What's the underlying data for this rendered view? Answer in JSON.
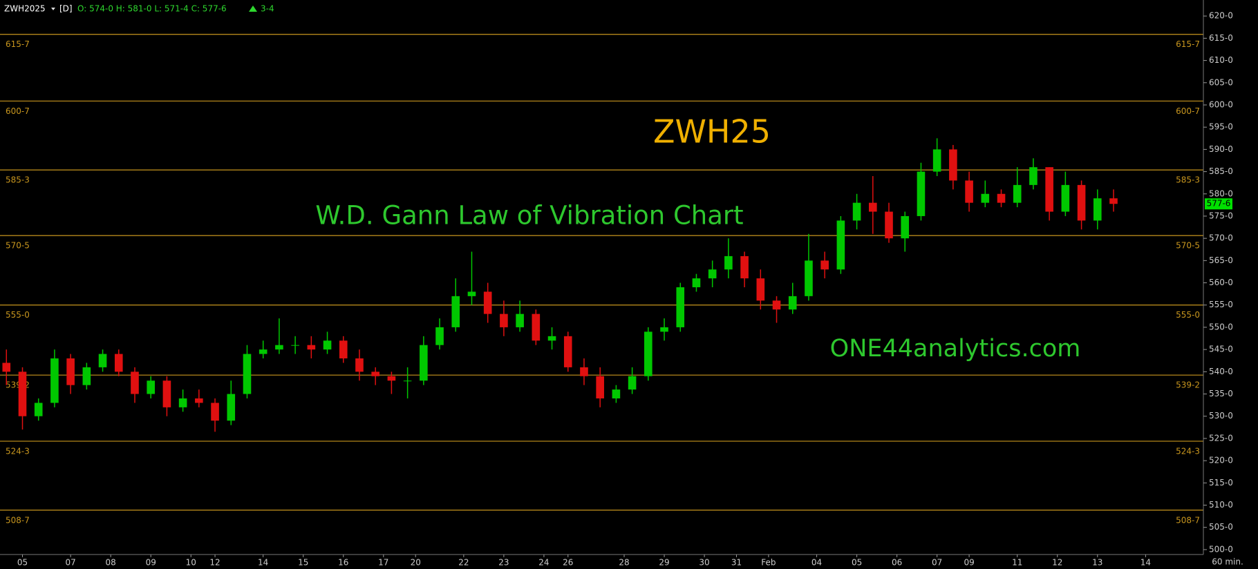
{
  "header": {
    "symbol": "ZWH2025",
    "interval": "[D]",
    "ohlc": "O: 574-0 H: 581-0 L: 571-4 C: 577-6",
    "change": "3-4"
  },
  "chart_data": {
    "type": "candlestick",
    "title": "ZWH25",
    "subtitle": "W.D. Gann Law of Vibration Chart",
    "annotation": "ONE44analytics.com",
    "x_unit": "60 min.",
    "up_color": "#00c800",
    "down_color": "#e01010",
    "level_color": "#c8961e",
    "open": [
      542,
      540,
      530,
      533,
      543,
      537,
      541,
      544,
      540,
      535,
      538,
      532,
      534,
      533,
      529,
      535,
      544,
      545,
      546,
      546,
      545,
      547,
      543,
      540,
      539,
      538,
      538,
      546,
      550,
      557,
      558,
      553,
      550,
      553,
      547,
      548,
      541,
      539,
      534,
      536,
      539,
      549,
      550,
      559,
      561,
      563,
      566,
      561,
      556,
      554,
      557,
      565,
      563,
      574,
      578,
      576,
      570,
      575,
      585,
      590,
      583,
      578,
      580,
      578,
      582,
      586,
      576,
      582,
      574,
      579
    ],
    "high": [
      545,
      541,
      534,
      545,
      544,
      542,
      545,
      545,
      541,
      539,
      539,
      536,
      536,
      534,
      538,
      546,
      547,
      552,
      548,
      548,
      549,
      548,
      545,
      541,
      540,
      541,
      548,
      552,
      561,
      567,
      560,
      556,
      556,
      554,
      550,
      549,
      543,
      541,
      537,
      541,
      550,
      552,
      560,
      562,
      565,
      570,
      567,
      563,
      557,
      560,
      571,
      567,
      575,
      580,
      584,
      578,
      576,
      587,
      592.5,
      591,
      585,
      583,
      581,
      586,
      588,
      586,
      585,
      583,
      581,
      581
    ],
    "low": [
      537,
      527,
      529,
      532,
      535,
      536,
      540,
      539,
      533,
      534,
      530,
      531,
      532,
      526.5,
      528,
      534,
      543,
      544,
      544,
      543,
      544,
      542,
      538,
      537,
      535,
      534,
      537,
      545,
      549,
      555,
      551,
      548,
      549,
      546,
      545,
      540,
      537,
      532,
      533,
      535,
      538,
      547,
      549,
      558,
      559,
      561,
      559,
      554,
      551,
      553,
      556,
      561,
      562,
      572,
      571,
      569,
      567,
      574,
      584,
      581,
      576,
      577,
      577,
      577,
      581,
      574,
      575,
      572,
      572,
      576
    ],
    "close": [
      540,
      530,
      533,
      543,
      537,
      541,
      544,
      540,
      535,
      538,
      532,
      534,
      533,
      529,
      535,
      544,
      545,
      546,
      546,
      545,
      547,
      543,
      540,
      539,
      538,
      538,
      546,
      550,
      557,
      558,
      553,
      550,
      553,
      547,
      548,
      541,
      539,
      534,
      536,
      539,
      549,
      550,
      559,
      561,
      563,
      566,
      561,
      556,
      554,
      557,
      565,
      563,
      574,
      578,
      576,
      570,
      575,
      585,
      590,
      583,
      578,
      580,
      578,
      582,
      586,
      576,
      582,
      574,
      579,
      577.75
    ],
    "xlim": [
      -0.4,
      74.6
    ],
    "xticks": [
      {
        "value": 1,
        "label": "05"
      },
      {
        "value": 4,
        "label": "07"
      },
      {
        "value": 6.5,
        "label": "08"
      },
      {
        "value": 9,
        "label": "09"
      },
      {
        "value": 11.5,
        "label": "10"
      },
      {
        "value": 13,
        "label": "12"
      },
      {
        "value": 16,
        "label": "14"
      },
      {
        "value": 18.5,
        "label": "15"
      },
      {
        "value": 21,
        "label": "16"
      },
      {
        "value": 23.5,
        "label": "17"
      },
      {
        "value": 25.5,
        "label": "20"
      },
      {
        "value": 28.5,
        "label": "22"
      },
      {
        "value": 31,
        "label": "23"
      },
      {
        "value": 33.5,
        "label": "24"
      },
      {
        "value": 35,
        "label": "26"
      },
      {
        "value": 38.5,
        "label": "28"
      },
      {
        "value": 41,
        "label": "29"
      },
      {
        "value": 43.5,
        "label": "30"
      },
      {
        "value": 45.5,
        "label": "31"
      },
      {
        "value": 47.5,
        "label": "Feb"
      },
      {
        "value": 50.5,
        "label": "04"
      },
      {
        "value": 53,
        "label": "05"
      },
      {
        "value": 55.5,
        "label": "06"
      },
      {
        "value": 58,
        "label": "07"
      },
      {
        "value": 60,
        "label": "09"
      },
      {
        "value": 63,
        "label": "11"
      },
      {
        "value": 65.5,
        "label": "12"
      },
      {
        "value": 68,
        "label": "13"
      },
      {
        "value": 71,
        "label": "14"
      }
    ],
    "ylim": [
      498.9,
      623.6
    ],
    "yticks": [
      {
        "value": 500,
        "label": "500-0"
      },
      {
        "value": 505,
        "label": "505-0"
      },
      {
        "value": 510,
        "label": "510-0"
      },
      {
        "value": 515,
        "label": "515-0"
      },
      {
        "value": 520,
        "label": "520-0"
      },
      {
        "value": 525,
        "label": "525-0"
      },
      {
        "value": 530,
        "label": "530-0"
      },
      {
        "value": 535,
        "label": "535-0"
      },
      {
        "value": 540,
        "label": "540-0"
      },
      {
        "value": 545,
        "label": "545-0"
      },
      {
        "value": 550,
        "label": "550-0"
      },
      {
        "value": 555,
        "label": "555-0"
      },
      {
        "value": 560,
        "label": "560-0"
      },
      {
        "value": 565,
        "label": "565-0"
      },
      {
        "value": 570,
        "label": "570-0"
      },
      {
        "value": 575,
        "label": "575-0"
      },
      {
        "value": 580,
        "label": "580-0"
      },
      {
        "value": 585,
        "label": "585-0"
      },
      {
        "value": 590,
        "label": "590-0"
      },
      {
        "value": 595,
        "label": "595-0"
      },
      {
        "value": 600,
        "label": "600-0"
      },
      {
        "value": 605,
        "label": "605-0"
      },
      {
        "value": 610,
        "label": "610-0"
      },
      {
        "value": 615,
        "label": "615-0"
      },
      {
        "value": 620,
        "label": "620-0"
      }
    ],
    "levels": [
      {
        "value": 615.875,
        "label": "615-7"
      },
      {
        "value": 600.875,
        "label": "600-7"
      },
      {
        "value": 585.375,
        "label": "585-3"
      },
      {
        "value": 570.625,
        "label": "570-5"
      },
      {
        "value": 555,
        "label": "555-0"
      },
      {
        "value": 539.25,
        "label": "539-2"
      },
      {
        "value": 524.375,
        "label": "524-3"
      },
      {
        "value": 508.875,
        "label": "508-7"
      }
    ],
    "last_price": {
      "value": 577.75,
      "label": "577-6"
    }
  }
}
